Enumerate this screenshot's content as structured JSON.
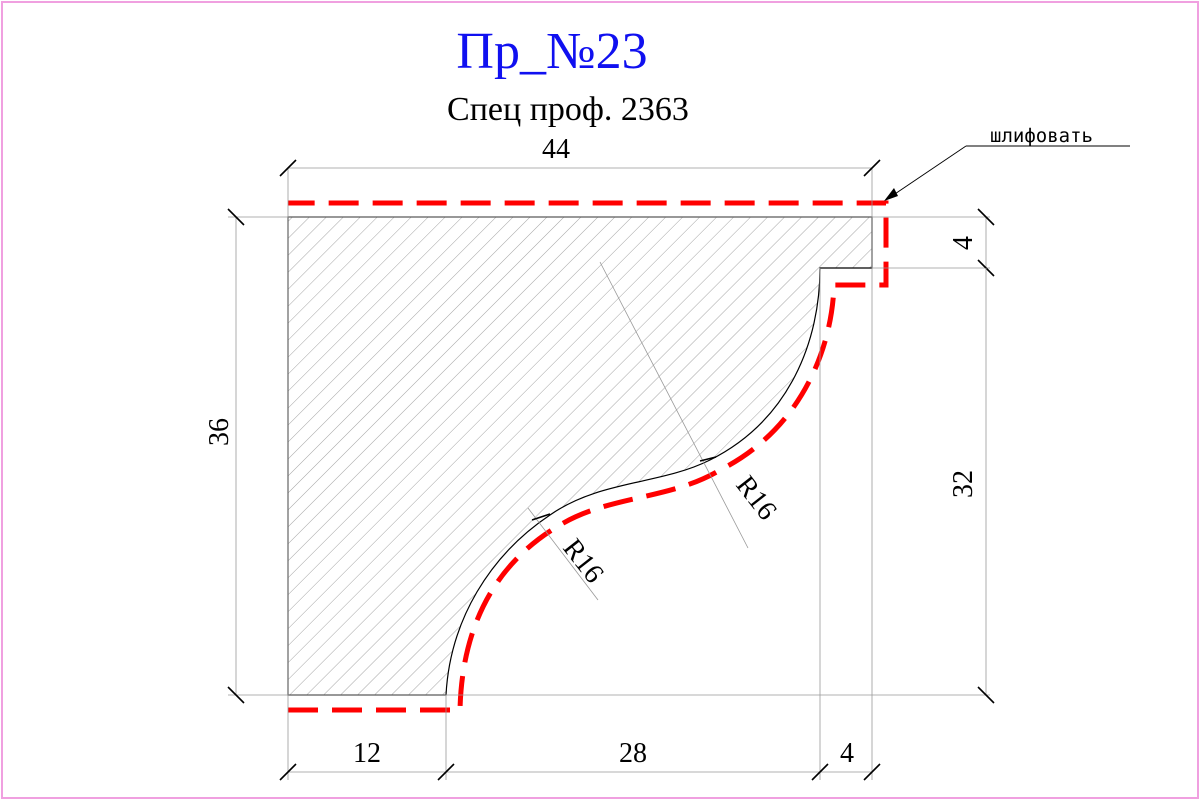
{
  "header": {
    "title": "Пр_№23",
    "subtitle": "Спец проф. 2363"
  },
  "colors": {
    "title": "#1010f0",
    "grind_line": "#ff0000",
    "border": "#f0a0e0"
  },
  "note": {
    "text": "шлифовать"
  },
  "dimensions": {
    "top_width": "44",
    "left_height": "36",
    "right_step": "4",
    "right_height": "32",
    "bottom_left": "12",
    "bottom_middle": "28",
    "bottom_right": "4",
    "radius_lower": "R16",
    "radius_upper": "R16"
  }
}
